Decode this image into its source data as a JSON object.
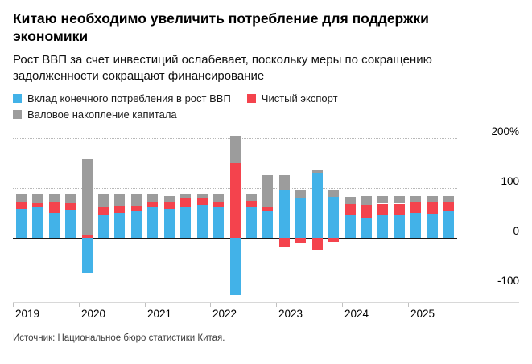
{
  "header": {
    "title": "Китаю необходимо увеличить потребление для поддержки экономики",
    "subtitle": "Рост ВВП за счет инвестиций ослабевает, поскольку меры по сокращению задолженности сокращают финансирование"
  },
  "legend": [
    {
      "label": "Вклад конечного потребления в рост ВВП",
      "color": "#42b2e8"
    },
    {
      "label": "Чистый экспорт",
      "color": "#f4434d"
    },
    {
      "label": "Валовое накопление капитала",
      "color": "#9c9c9c"
    }
  ],
  "source": "Источник: Национальное бюро статистики Китая.",
  "chart_data": {
    "type": "bar",
    "subtype": "stacked-quarterly",
    "x": [
      "2019 Q1",
      "2019 Q2",
      "2019 Q3",
      "2019 Q4",
      "2020 Q1",
      "2020 Q2",
      "2020 Q3",
      "2020 Q4",
      "2021 Q1",
      "2021 Q2",
      "2021 Q3",
      "2021 Q4",
      "2022 Q1",
      "2022 Q2",
      "2022 Q3",
      "2022 Q4",
      "2023 Q1",
      "2023 Q2",
      "2023 Q3",
      "2023 Q4",
      "2024 Q1",
      "2024 Q2",
      "2024 Q3",
      "2024 Q4",
      "2025 Q1",
      "2025 Q2",
      "2025 Q3"
    ],
    "year_ticks": [
      "2019",
      "2020",
      "2021",
      "2022",
      "2023",
      "2024",
      "2025"
    ],
    "series": [
      {
        "name": "Вклад конечного потребления в рост ВВП",
        "key": "consumption",
        "color": "#42b2e8",
        "values": [
          58,
          60,
          50,
          56,
          -72,
          46,
          50,
          52,
          60,
          58,
          62,
          66,
          62,
          -115,
          60,
          55,
          95,
          78,
          130,
          82,
          45,
          40,
          44,
          46,
          50,
          48,
          52
        ]
      },
      {
        "name": "Чистый экспорт",
        "key": "net-exports",
        "color": "#f4434d",
        "values": [
          12,
          9,
          20,
          13,
          6,
          16,
          14,
          12,
          10,
          14,
          16,
          14,
          10,
          150,
          14,
          5,
          -18,
          -12,
          -25,
          -8,
          22,
          26,
          24,
          22,
          20,
          22,
          18
        ]
      },
      {
        "name": "Валовое накопление капитала",
        "key": "capital-formation",
        "color": "#9c9c9c",
        "values": [
          16,
          17,
          16,
          17,
          152,
          24,
          22,
          22,
          16,
          12,
          8,
          6,
          16,
          55,
          14,
          65,
          30,
          18,
          6,
          12,
          15,
          18,
          16,
          16,
          14,
          14,
          14
        ]
      }
    ],
    "yticks": [
      {
        "value": 200,
        "label": "200%"
      },
      {
        "value": 100,
        "label": "100"
      },
      {
        "value": 0,
        "label": "0"
      },
      {
        "value": -100,
        "label": "-100"
      }
    ],
    "ylim": [
      -130,
      212
    ],
    "unit": "%",
    "grid": "horizontal-dotted",
    "legend_position": "top-left"
  }
}
